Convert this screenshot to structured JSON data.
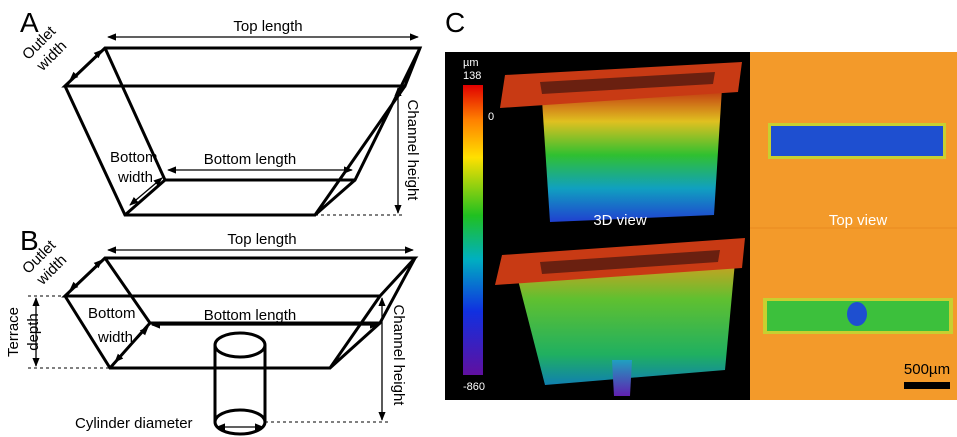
{
  "panel_a": {
    "label": "A",
    "outlet_width": [
      "Outlet",
      "width"
    ],
    "top_length": "Top length",
    "channel_height": "Channel height",
    "bottom_width": [
      "Bottom",
      "width"
    ],
    "bottom_length": "Bottom length"
  },
  "panel_b": {
    "label": "B",
    "outlet_width": [
      "Outlet",
      "width"
    ],
    "top_length": "Top length",
    "terrace_depth": [
      "Terrace",
      "depth"
    ],
    "bottom_width": [
      "Bottom",
      "width"
    ],
    "bottom_length": "Bottom length",
    "channel_height": "Channel height",
    "cylinder_diameter": "Cylinder diameter"
  },
  "panel_c": {
    "label": "C",
    "colorbar": {
      "unit": "µm",
      "max": "138",
      "zero": "0",
      "min": "-860"
    },
    "view_3d": "3D view",
    "view_top": "Top view",
    "scale_bar": "500µm"
  }
}
